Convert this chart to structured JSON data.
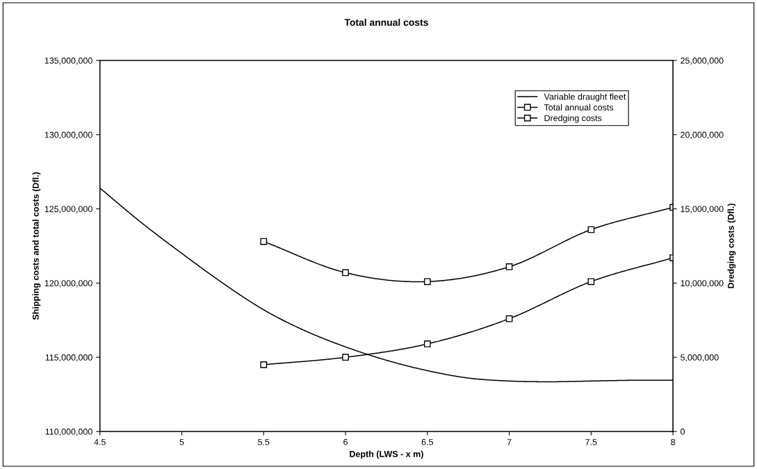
{
  "chart_data": {
    "type": "line",
    "title": "Total annual costs",
    "xlabel": "Depth (LWS - x m)",
    "ylabel": "Shipping costs and total costs (Dfl.)",
    "y2label": "Dredging costs (Dfl.)",
    "series": [
      {
        "name": "Variable draught fleet",
        "color": "#000000",
        "marker": "none",
        "x": [
          4.5,
          4.75,
          5,
          5.25,
          5.5,
          5.75,
          6,
          6.25,
          6.5,
          6.75,
          7,
          7.25,
          7.5,
          7.75,
          8
        ],
        "values": [
          126400000,
          124100000,
          122000000,
          120000000,
          118200000,
          116800000,
          115700000,
          114800000,
          114100000,
          113600000,
          113400000,
          113350000,
          113400000,
          113450000,
          113450000
        ]
      },
      {
        "name": "Total annual costs",
        "color": "#000000",
        "marker": "square",
        "x": [
          5.5,
          6,
          6.5,
          7,
          7.5,
          8
        ],
        "values": [
          122800000,
          120700000,
          120100000,
          121100000,
          123600000,
          125100000
        ]
      },
      {
        "name": "Dredging costs",
        "color": "#000000",
        "marker": "square",
        "axis": "y2",
        "x": [
          5.5,
          6,
          6.5,
          7,
          7.5,
          8
        ],
        "values": [
          4500000,
          5000000,
          5900000,
          7600000,
          10100000,
          11700000
        ]
      }
    ],
    "xlim": [
      4.5,
      8
    ],
    "xticks": [
      4.5,
      5,
      5.5,
      6,
      6.5,
      7,
      7.5,
      8
    ],
    "ylim": [
      110000000,
      135000000
    ],
    "yticks": [
      {
        "value": 110000000,
        "label": "110,000,000"
      },
      {
        "value": 115000000,
        "label": "115,000,000"
      },
      {
        "value": 120000000,
        "label": "120,000,000"
      },
      {
        "value": 125000000,
        "label": "125,000,000"
      },
      {
        "value": 130000000,
        "label": "130,000,000"
      },
      {
        "value": 135000000,
        "label": "135,000,000"
      }
    ],
    "y2lim": [
      0,
      25000000
    ],
    "y2ticks": [
      0,
      {
        "value": 5000000,
        "label": "5,000,000"
      },
      {
        "value": 10000000,
        "label": "10,000,000"
      },
      {
        "value": 15000000,
        "label": "15,000,000"
      },
      {
        "value": 20000000,
        "label": "20,000,000"
      },
      {
        "value": 25000000,
        "label": "25,000,000"
      }
    ],
    "grid": false,
    "legend": "top right",
    "line_style": "solid"
  }
}
